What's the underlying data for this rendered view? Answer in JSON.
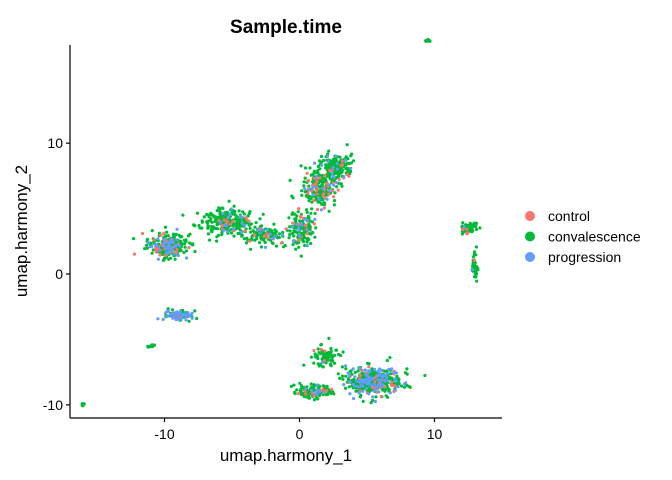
{
  "chart_data": {
    "type": "scatter",
    "title": "Sample.time",
    "xlabel": "umap.harmony_1",
    "ylabel": "umap.harmony_2",
    "xlim": [
      -17,
      15
    ],
    "ylim": [
      -11,
      17.5
    ],
    "xticks": [
      -10,
      0,
      10
    ],
    "yticks": [
      -10,
      0,
      10
    ],
    "xtick_labels": [
      "-10",
      "0",
      "10"
    ],
    "ytick_labels": [
      "-10",
      "0",
      "10"
    ],
    "grid": false,
    "legend": "right",
    "series": [
      {
        "name": "control",
        "color": "#F8766D"
      },
      {
        "name": "convalescence",
        "color": "#00BA38"
      },
      {
        "name": "progression",
        "color": "#619CFF"
      }
    ],
    "clusters": [
      {
        "center": [
          -9.8,
          2.2
        ],
        "spread": [
          1.3,
          0.8
        ],
        "count": 260,
        "mix": [
          0.12,
          0.72,
          0.16
        ]
      },
      {
        "center": [
          -5.5,
          4.0
        ],
        "spread": [
          2.0,
          0.9
        ],
        "count": 260,
        "mix": [
          0.07,
          0.88,
          0.05
        ]
      },
      {
        "center": [
          -2.5,
          3.0
        ],
        "spread": [
          1.8,
          0.6
        ],
        "count": 120,
        "mix": [
          0.08,
          0.86,
          0.06
        ]
      },
      {
        "center": [
          0.2,
          3.5
        ],
        "spread": [
          0.8,
          1.2
        ],
        "count": 140,
        "mix": [
          0.12,
          0.8,
          0.08
        ]
      },
      {
        "center": [
          1.5,
          6.5
        ],
        "spread": [
          1.2,
          1.3
        ],
        "count": 200,
        "mix": [
          0.1,
          0.82,
          0.08
        ]
      },
      {
        "center": [
          2.8,
          8.2
        ],
        "spread": [
          1.0,
          0.9
        ],
        "count": 160,
        "mix": [
          0.06,
          0.86,
          0.08
        ]
      },
      {
        "center": [
          -9.0,
          -3.2
        ],
        "spread": [
          0.9,
          0.35
        ],
        "count": 90,
        "mix": [
          0.05,
          0.55,
          0.4
        ]
      },
      {
        "center": [
          -11.0,
          -5.5
        ],
        "spread": [
          0.2,
          0.15
        ],
        "count": 10,
        "mix": [
          0.0,
          1.0,
          0.0
        ]
      },
      {
        "center": [
          -16.0,
          -10.0
        ],
        "spread": [
          0.15,
          0.15
        ],
        "count": 6,
        "mix": [
          0.0,
          1.0,
          0.0
        ]
      },
      {
        "center": [
          9.5,
          17.8
        ],
        "spread": [
          0.15,
          0.1
        ],
        "count": 8,
        "mix": [
          0.0,
          1.0,
          0.0
        ]
      },
      {
        "center": [
          12.5,
          3.5
        ],
        "spread": [
          0.5,
          0.4
        ],
        "count": 80,
        "mix": [
          0.06,
          0.9,
          0.04
        ]
      },
      {
        "center": [
          13.0,
          0.5
        ],
        "spread": [
          0.2,
          1.0
        ],
        "count": 40,
        "mix": [
          0.05,
          0.9,
          0.05
        ]
      },
      {
        "center": [
          5.5,
          -8.2
        ],
        "spread": [
          1.8,
          1.0
        ],
        "count": 420,
        "mix": [
          0.08,
          0.7,
          0.22
        ]
      },
      {
        "center": [
          2.0,
          -6.3
        ],
        "spread": [
          0.9,
          0.7
        ],
        "count": 80,
        "mix": [
          0.04,
          0.93,
          0.03
        ]
      },
      {
        "center": [
          1.0,
          -9.0
        ],
        "spread": [
          1.3,
          0.5
        ],
        "count": 120,
        "mix": [
          0.1,
          0.8,
          0.1
        ]
      }
    ]
  }
}
